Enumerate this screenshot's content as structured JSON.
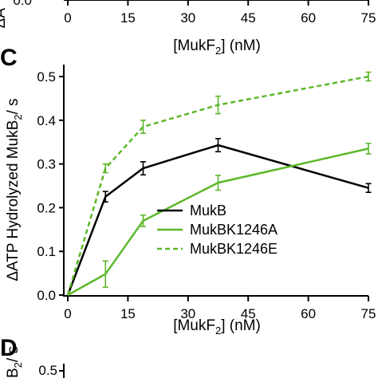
{
  "top_panel": {
    "y_label_fragment": "ΔA",
    "x_ticks": [
      "0",
      "15",
      "30",
      "45",
      "60",
      "75"
    ],
    "xlabel_pre": "[MukF",
    "xlabel_sub": "2",
    "xlabel_post": "] (nM)"
  },
  "panel_c": {
    "label": "C"
  },
  "panel_d": {
    "label": "D",
    "y_label_fragment": "B",
    "y_label_sub": "2",
    "y_label_post": "/ s",
    "y_tick": "0.5"
  },
  "chart_data": {
    "type": "line",
    "title": "",
    "xlabel": "[MukF2] (nM)",
    "ylabel": "ΔATP Hydrolyzed MukB2/ s",
    "xlabel_parts": {
      "pre": "[MukF",
      "sub": "2",
      "post": "] (nM)"
    },
    "ylabel_parts": {
      "pre": "ΔATP Hydrolyzed MukB",
      "sub": "2",
      "post": "/ s"
    },
    "xlim": [
      0,
      75
    ],
    "ylim": [
      0,
      0.52
    ],
    "x_ticks": [
      0,
      15,
      30,
      45,
      60,
      75
    ],
    "x_tick_labels": [
      "0",
      "15",
      "30",
      "45",
      "60",
      "75"
    ],
    "y_ticks": [
      0.0,
      0.1,
      0.2,
      0.3,
      0.4,
      0.5
    ],
    "y_tick_labels": [
      "0.0",
      "0.1",
      "0.2",
      "0.3",
      "0.4",
      "0.5"
    ],
    "grid": false,
    "legend_position": "lower-center",
    "series": [
      {
        "name": "MukB",
        "color": "#000000",
        "dash": "solid",
        "x": [
          0,
          9.4,
          18.8,
          37.5,
          75
        ],
        "y": [
          0.0,
          0.225,
          0.29,
          0.343,
          0.245
        ],
        "err": [
          0,
          0.012,
          0.015,
          0.015,
          0.01
        ]
      },
      {
        "name": "MukBK1246A",
        "color": "#5cb82a",
        "dash": "solid",
        "x": [
          0,
          9.4,
          18.8,
          37.5,
          75
        ],
        "y": [
          0.0,
          0.048,
          0.17,
          0.257,
          0.335
        ],
        "err": [
          0,
          0.03,
          0.013,
          0.017,
          0.012
        ]
      },
      {
        "name": "MukBK1246E",
        "color": "#5cb82a",
        "dash": "dashed",
        "x": [
          0,
          9.4,
          18.8,
          37.5,
          75
        ],
        "y": [
          0.0,
          0.29,
          0.385,
          0.435,
          0.5
        ],
        "err": [
          0,
          0.01,
          0.015,
          0.02,
          0.01
        ]
      }
    ]
  }
}
